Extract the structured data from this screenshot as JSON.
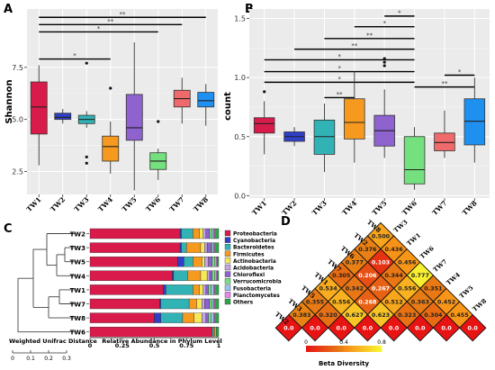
{
  "colors": {
    "TW1": "#d81b4a",
    "TW2": "#2f3fc8",
    "TW3": "#31b3b6",
    "TW4": "#f59a1e",
    "TW5": "#8e62cf",
    "TW6": "#74e07e",
    "TW7": "#ef6a6a",
    "TW8": "#1e90f0",
    "panel_bg": "#ebebeb",
    "grid": "#ffffff",
    "sig_line": "#000000"
  },
  "panel_labels": [
    "A",
    "B",
    "C",
    "D"
  ],
  "chart_data": [
    {
      "id": "A",
      "type": "box",
      "ylabel": "Shannon",
      "xlabel": "",
      "ylim": [
        1.4,
        10.3
      ],
      "yticks": [
        "2.5",
        "5.0",
        "7.5"
      ],
      "yticks_values": [
        2.5,
        5.0,
        7.5
      ],
      "categories": [
        "TW1",
        "TW2",
        "TW3",
        "TW4",
        "TW5",
        "TW6",
        "TW7",
        "TW8"
      ],
      "boxes": [
        {
          "group": "TW1",
          "min": 2.8,
          "q1": 4.3,
          "median": 5.6,
          "q3": 6.8,
          "max": 7.6,
          "outliers": []
        },
        {
          "group": "TW2",
          "min": 4.8,
          "q1": 5.0,
          "median": 5.1,
          "q3": 5.3,
          "max": 5.5,
          "outliers": []
        },
        {
          "group": "TW3",
          "min": 4.6,
          "q1": 4.8,
          "median": 5.0,
          "q3": 5.2,
          "max": 5.4,
          "outliers": [
            7.7,
            3.2,
            2.9
          ]
        },
        {
          "group": "TW4",
          "min": 2.4,
          "q1": 3.0,
          "median": 3.7,
          "q3": 4.2,
          "max": 4.9,
          "outliers": [
            6.5
          ]
        },
        {
          "group": "TW5",
          "min": 1.6,
          "q1": 4.0,
          "median": 4.6,
          "q3": 6.2,
          "max": 8.7,
          "outliers": []
        },
        {
          "group": "TW6",
          "min": 2.1,
          "q1": 2.6,
          "median": 3.0,
          "q3": 3.4,
          "max": 3.6,
          "outliers": [
            4.9
          ]
        },
        {
          "group": "TW7",
          "min": 4.8,
          "q1": 5.6,
          "median": 6.0,
          "q3": 6.4,
          "max": 7.0,
          "outliers": []
        },
        {
          "group": "TW8",
          "min": 4.7,
          "q1": 5.6,
          "median": 5.9,
          "q3": 6.3,
          "max": 6.7,
          "outliers": []
        }
      ],
      "significance": [
        {
          "from": "TW1",
          "to": "TW4",
          "y": 7.9,
          "label": "*"
        },
        {
          "from": "TW1",
          "to": "TW6",
          "y": 9.2,
          "label": "*"
        },
        {
          "from": "TW1",
          "to": "TW7",
          "y": 9.55,
          "label": "**"
        },
        {
          "from": "TW1",
          "to": "TW8",
          "y": 9.9,
          "label": "**"
        }
      ]
    },
    {
      "id": "B",
      "type": "box",
      "ylabel": "count",
      "xlabel": "",
      "ylim": [
        -0.02,
        1.58
      ],
      "yticks": [
        "0.0",
        "0.5",
        "1.0",
        "1.5"
      ],
      "yticks_values": [
        0.0,
        0.5,
        1.0,
        1.5
      ],
      "categories": [
        "TW1",
        "TW2",
        "TW3",
        "TW4",
        "TW5",
        "TW6",
        "TW7",
        "TW8"
      ],
      "boxes": [
        {
          "group": "TW1",
          "min": 0.35,
          "q1": 0.53,
          "median": 0.61,
          "q3": 0.66,
          "max": 0.8,
          "outliers": [
            0.88
          ]
        },
        {
          "group": "TW2",
          "min": 0.42,
          "q1": 0.46,
          "median": 0.5,
          "q3": 0.54,
          "max": 0.58,
          "outliers": []
        },
        {
          "group": "TW3",
          "min": 0.2,
          "q1": 0.35,
          "median": 0.5,
          "q3": 0.64,
          "max": 0.78,
          "outliers": []
        },
        {
          "group": "TW4",
          "min": 0.28,
          "q1": 0.48,
          "median": 0.62,
          "q3": 0.82,
          "max": 1.05,
          "outliers": []
        },
        {
          "group": "TW5",
          "min": 0.32,
          "q1": 0.42,
          "median": 0.55,
          "q3": 0.68,
          "max": 0.9,
          "outliers": [
            1.1,
            1.13,
            1.16
          ]
        },
        {
          "group": "TW6",
          "min": 0.05,
          "q1": 0.1,
          "median": 0.22,
          "q3": 0.5,
          "max": 0.58,
          "outliers": []
        },
        {
          "group": "TW7",
          "min": 0.32,
          "q1": 0.38,
          "median": 0.45,
          "q3": 0.53,
          "max": 0.72,
          "outliers": []
        },
        {
          "group": "TW8",
          "min": 0.28,
          "q1": 0.43,
          "median": 0.63,
          "q3": 0.82,
          "max": 1.0,
          "outliers": []
        }
      ],
      "significance": [
        {
          "from": "TW1",
          "to": "TW6",
          "y": 0.96,
          "label": "*"
        },
        {
          "from": "TW1",
          "to": "TW6",
          "y": 1.05,
          "label": "*"
        },
        {
          "from": "TW1",
          "to": "TW6",
          "y": 1.15,
          "label": "*"
        },
        {
          "from": "TW2",
          "to": "TW6",
          "y": 1.24,
          "label": "**"
        },
        {
          "from": "TW3",
          "to": "TW6",
          "y": 1.33,
          "label": "**"
        },
        {
          "from": "TW4",
          "to": "TW6",
          "y": 1.43,
          "label": "*"
        },
        {
          "from": "TW5",
          "to": "TW6",
          "y": 1.52,
          "label": "*"
        },
        {
          "from": "TW6",
          "to": "TW8",
          "y": 0.92,
          "label": "**"
        },
        {
          "from": "TW7",
          "to": "TW8",
          "y": 1.02,
          "label": "*"
        },
        {
          "from": "TW3",
          "to": "TW4",
          "y": 0.83,
          "label": "**"
        }
      ]
    },
    {
      "id": "C",
      "type": "bar",
      "orientation": "horizontal-stacked",
      "xlabel": "Relative Abundance in Phylum Level",
      "xlim": [
        0,
        1
      ],
      "xticks": [
        "0",
        "0.25",
        "0.5",
        "0.75",
        "1"
      ],
      "xticks_values": [
        0,
        0.25,
        0.5,
        0.75,
        1.0
      ],
      "categories": [
        "TW2",
        "TW3",
        "TW5",
        "TW4",
        "TW1",
        "TW7",
        "TW8",
        "TW6"
      ],
      "series": [
        {
          "name": "Proteobacteria",
          "color": "#d81b4a",
          "values": [
            0.7,
            0.7,
            0.68,
            0.64,
            0.57,
            0.54,
            0.5,
            0.95
          ]
        },
        {
          "name": "Cyanobacteria",
          "color": "#2f3fc8",
          "values": [
            0.01,
            0.01,
            0.05,
            0.01,
            0.02,
            0.01,
            0.05,
            0.0
          ]
        },
        {
          "name": "Bacteroidetes",
          "color": "#31b3b6",
          "values": [
            0.09,
            0.04,
            0.07,
            0.11,
            0.21,
            0.22,
            0.17,
            0.01
          ]
        },
        {
          "name": "Firmicutes",
          "color": "#f59a1e",
          "values": [
            0.05,
            0.11,
            0.07,
            0.1,
            0.05,
            0.06,
            0.09,
            0.01
          ]
        },
        {
          "name": "Actinobacteria",
          "color": "#f2e85a",
          "values": [
            0.03,
            0.03,
            0.02,
            0.05,
            0.03,
            0.04,
            0.06,
            0.0
          ]
        },
        {
          "name": "Acidobacteria",
          "color": "#c6a5e3",
          "values": [
            0.02,
            0.02,
            0.03,
            0.02,
            0.02,
            0.02,
            0.03,
            0.0
          ]
        },
        {
          "name": "Chloroflexi",
          "color": "#8e62cf",
          "values": [
            0.03,
            0.03,
            0.03,
            0.02,
            0.02,
            0.04,
            0.02,
            0.0
          ]
        },
        {
          "name": "Verrucomicrobia",
          "color": "#74e07e",
          "values": [
            0.02,
            0.01,
            0.02,
            0.02,
            0.02,
            0.02,
            0.02,
            0.01
          ]
        },
        {
          "name": "Fusobacteria",
          "color": "#9ac2ef",
          "values": [
            0.01,
            0.01,
            0.01,
            0.01,
            0.02,
            0.01,
            0.02,
            0.0
          ]
        },
        {
          "name": "Planctomycetes",
          "color": "#ee82ee",
          "values": [
            0.01,
            0.01,
            0.01,
            0.01,
            0.01,
            0.01,
            0.01,
            0.0
          ]
        },
        {
          "name": "Others",
          "color": "#2ca44a",
          "values": [
            0.03,
            0.03,
            0.01,
            0.01,
            0.03,
            0.03,
            0.03,
            0.02
          ]
        }
      ],
      "dendrogram_label": "Weighted Unifrac Distance",
      "dendrogram_scale_ticks": [
        "0",
        "0.1",
        "0.2",
        "0.3"
      ]
    },
    {
      "id": "D",
      "type": "heatmap",
      "legend_title": "Beta Diversity",
      "legend_ticks": [
        "0",
        "0.4",
        "0.8"
      ],
      "legend_range": [
        0,
        0.8
      ],
      "row_labels_left": [
        "TW8",
        "TW2",
        "TW6",
        "TW7",
        "TW1",
        "TW5",
        "TW3",
        "TW2"
      ],
      "col_labels_right": [
        "TW3",
        "TW1",
        "TW6",
        "TW7",
        "TW4",
        "TW5",
        "TW8"
      ],
      "diagonals": [
        [
          "0.500"
        ],
        [
          "0.376",
          "0.436"
        ],
        [
          "0.377",
          "0.103",
          "0.456"
        ],
        [
          "0.305",
          "0.206",
          "0.344",
          "0.777"
        ],
        [
          "0.534",
          "0.342",
          "0.267",
          "0.556",
          "0.351"
        ],
        [
          "0.355",
          "0.556",
          "0.268",
          "0.512",
          "0.363",
          "0.452"
        ],
        [
          "0.383",
          "0.320",
          "0.627",
          "0.623",
          "0.323",
          "0.304",
          "0.455"
        ],
        [
          "0.0",
          "0.0",
          "0.0",
          "0.0",
          "0.0",
          "0.0",
          "0.0",
          "0.0"
        ]
      ]
    }
  ]
}
